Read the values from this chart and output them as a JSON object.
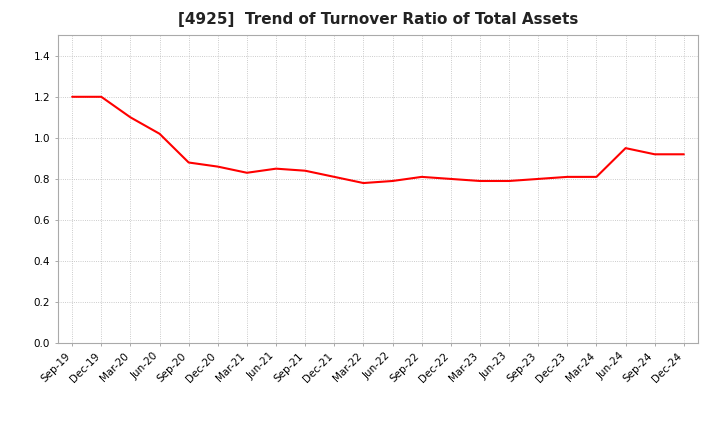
{
  "title": "[4925]  Trend of Turnover Ratio of Total Assets",
  "x_labels": [
    "Sep-19",
    "Dec-19",
    "Mar-20",
    "Jun-20",
    "Sep-20",
    "Dec-20",
    "Mar-21",
    "Jun-21",
    "Sep-21",
    "Dec-21",
    "Mar-22",
    "Jun-22",
    "Sep-22",
    "Dec-22",
    "Mar-23",
    "Jun-23",
    "Sep-23",
    "Dec-23",
    "Mar-24",
    "Jun-24",
    "Sep-24",
    "Dec-24"
  ],
  "y_values": [
    1.2,
    1.2,
    1.1,
    1.02,
    0.88,
    0.86,
    0.83,
    0.85,
    0.84,
    0.81,
    0.78,
    0.79,
    0.81,
    0.8,
    0.79,
    0.79,
    0.8,
    0.81,
    0.81,
    0.95,
    0.92,
    0.92
  ],
  "line_color": "#FF0000",
  "line_width": 1.5,
  "ylim": [
    0.0,
    1.5
  ],
  "yticks": [
    0.0,
    0.2,
    0.4,
    0.6,
    0.8,
    1.0,
    1.2,
    1.4
  ],
  "grid_color": "#bbbbbb",
  "bg_color": "#ffffff",
  "plot_bg_color": "#ffffff",
  "title_fontsize": 11,
  "tick_fontsize": 7.5,
  "title_color": "#222222"
}
